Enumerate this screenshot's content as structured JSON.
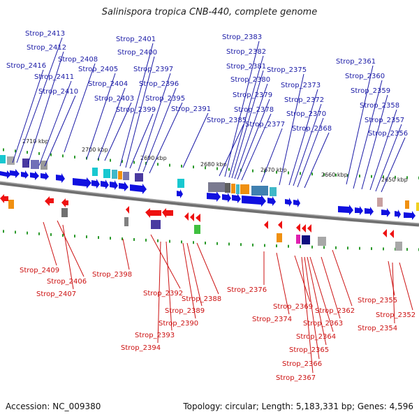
{
  "title": "Salinispora tropica CNB-440, complete genome",
  "footer": {
    "accession": "Accession: NC_009380",
    "summary": "Topology: circular; Length: 5,183,331 bp; Genes: 4,596"
  },
  "colors": {
    "forward_label": "#1a1aa6",
    "reverse_label": "#cc1111",
    "forward_gene": "#1010e0",
    "reverse_gene": "#ee1111",
    "backbone": "#707070",
    "tick_mark": "#2c9a2c"
  },
  "tick_labels": [
    "2710 kbp",
    "2700 kbp",
    "2690 kbp",
    "2680 kbp",
    "2670 kbp",
    "2660 kbp",
    "2650 kbp"
  ],
  "forward_labels": [
    "Strop_2416",
    "Strop_2413",
    "Strop_2412",
    "Strop_2411",
    "Strop_2410",
    "Strop_2408",
    "Strop_2405",
    "Strop_2404",
    "Strop_2403",
    "Strop_2401",
    "Strop_2400",
    "Strop_2399",
    "Strop_2397",
    "Strop_2396",
    "Strop_2395",
    "Strop_2391",
    "Strop_2385",
    "Strop_2383",
    "Strop_2382",
    "Strop_2381",
    "Strop_2380",
    "Strop_2379",
    "Strop_2378",
    "Strop_2377",
    "Strop_2375",
    "Strop_2373",
    "Strop_2372",
    "Strop_2370",
    "Strop_2368",
    "Strop_2361",
    "Strop_2360",
    "Strop_2359",
    "Strop_2358",
    "Strop_2357",
    "Strop_2356"
  ],
  "reverse_labels": [
    "Strop_2409",
    "Strop_2406",
    "Strop_2407",
    "Strop_2398",
    "Strop_2392",
    "Strop_2388",
    "Strop_2389",
    "Strop_2390",
    "Strop_2393",
    "Strop_2394",
    "Strop_2376",
    "Strop_2374",
    "Strop_2369",
    "Strop_2362",
    "Strop_2363",
    "Strop_2364",
    "Strop_2365",
    "Strop_2366",
    "Strop_2367",
    "Strop_2355",
    "Strop_2352",
    "Strop_2354"
  ]
}
